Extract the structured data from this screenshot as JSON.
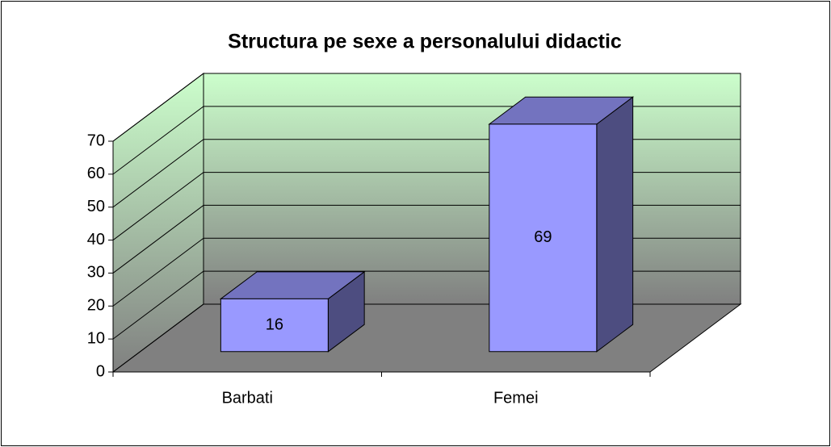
{
  "chart_data": {
    "type": "bar3d",
    "title": "Structura pe sexe a personalului didactic",
    "categories": [
      "Barbati",
      "Femei"
    ],
    "values": [
      16,
      69
    ],
    "color": "#9999ff",
    "ylim": [
      0,
      70
    ],
    "yticks": [
      0,
      10,
      20,
      30,
      40,
      50,
      60,
      70
    ],
    "grid": true
  }
}
